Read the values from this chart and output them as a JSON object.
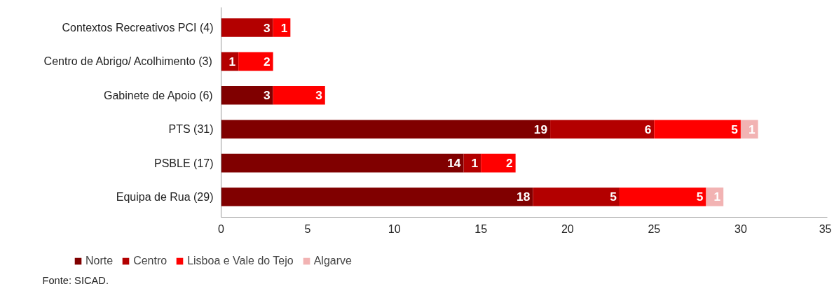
{
  "chart_data": {
    "type": "bar",
    "orientation": "horizontal",
    "stacked": true,
    "data_labels": true,
    "legend": "bottom left",
    "grid": false,
    "categories": [
      "Contextos Recreativos PCI (4)",
      "Centro de Abrigo/ Acolhimento (3)",
      "Gabinete de Apoio (6)",
      "PTS (31)",
      "PSBLE (17)",
      "Equipa de Rua (29)"
    ],
    "series": [
      {
        "name": "Norte",
        "color": "#800000",
        "values": [
          null,
          null,
          3,
          19,
          14,
          18
        ]
      },
      {
        "name": "Centro",
        "color": "#b30000",
        "values": [
          3,
          1,
          null,
          6,
          1,
          5
        ]
      },
      {
        "name": "Lisboa e Vale do Tejo",
        "color": "#ff0000",
        "values": [
          1,
          2,
          3,
          5,
          2,
          5
        ]
      },
      {
        "name": "Algarve",
        "color": "#f2b3b3",
        "values": [
          null,
          null,
          null,
          1,
          null,
          1
        ]
      }
    ],
    "xlim": [
      0,
      35
    ],
    "xticks": [
      0,
      5,
      10,
      15,
      20,
      25,
      30,
      35
    ],
    "annotations": [
      "Fonte: SICAD."
    ]
  }
}
